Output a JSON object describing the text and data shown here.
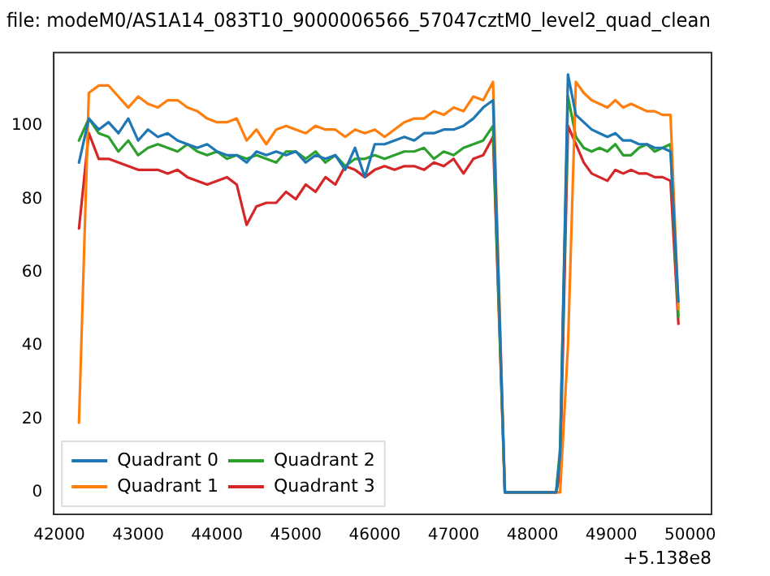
{
  "chart_data": {
    "type": "line",
    "title": "file: modeM0/AS1A14_083T10_9000006566_57047cztM0_level2_quad_clean",
    "annotations": [
      "+5.138e8"
    ],
    "x": [
      42250,
      42375,
      42500,
      42625,
      42750,
      42875,
      43000,
      43125,
      43250,
      43375,
      43500,
      43625,
      43750,
      43875,
      44000,
      44125,
      44250,
      44375,
      44500,
      44625,
      44750,
      44875,
      45000,
      45125,
      45250,
      45375,
      45500,
      45625,
      45750,
      45875,
      46000,
      46125,
      46250,
      46375,
      46500,
      46625,
      46750,
      46875,
      47000,
      47125,
      47250,
      47375,
      47500,
      47650,
      48300,
      48350,
      48450,
      48550,
      48650,
      48750,
      48850,
      48950,
      49050,
      49150,
      49250,
      49350,
      49450,
      49550,
      49650,
      49750,
      49850
    ],
    "series": [
      {
        "name": "Quadrant 0",
        "color": "#1f77b4",
        "values": [
          90,
          102,
          99,
          101,
          98,
          102,
          96,
          99,
          97,
          98,
          96,
          95,
          94,
          95,
          93,
          92,
          92,
          90,
          93,
          92,
          93,
          92,
          93,
          90,
          92,
          91,
          92,
          88,
          94,
          86,
          95,
          95,
          96,
          97,
          96,
          98,
          98,
          99,
          99,
          100,
          102,
          105,
          107,
          0,
          0,
          10,
          114,
          103,
          101,
          99,
          98,
          97,
          98,
          96,
          96,
          95,
          95,
          94,
          94,
          93,
          52
        ]
      },
      {
        "name": "Quadrant 1",
        "color": "#ff7f0e",
        "values": [
          19,
          109,
          111,
          111,
          108,
          105,
          108,
          106,
          105,
          107,
          107,
          105,
          104,
          102,
          101,
          101,
          102,
          96,
          99,
          95,
          99,
          100,
          99,
          98,
          100,
          99,
          99,
          97,
          99,
          98,
          99,
          97,
          99,
          101,
          102,
          102,
          104,
          103,
          105,
          104,
          108,
          107,
          112,
          0,
          0,
          0,
          40,
          112,
          109,
          107,
          106,
          105,
          107,
          105,
          106,
          105,
          104,
          104,
          103,
          103,
          50
        ]
      },
      {
        "name": "Quadrant 2",
        "color": "#2ca02c",
        "values": [
          96,
          102,
          98,
          97,
          93,
          96,
          92,
          94,
          95,
          94,
          93,
          95,
          93,
          92,
          93,
          91,
          92,
          91,
          92,
          91,
          90,
          93,
          93,
          91,
          93,
          90,
          92,
          89,
          91,
          91,
          92,
          91,
          92,
          93,
          93,
          94,
          91,
          93,
          92,
          94,
          95,
          96,
          100,
          0,
          0,
          12,
          108,
          97,
          94,
          93,
          94,
          93,
          95,
          92,
          92,
          94,
          95,
          93,
          94,
          95,
          48
        ]
      },
      {
        "name": "Quadrant 3",
        "color": "#d62728",
        "values": [
          72,
          98,
          91,
          91,
          90,
          89,
          88,
          88,
          88,
          87,
          88,
          86,
          85,
          84,
          85,
          86,
          84,
          73,
          78,
          79,
          79,
          82,
          80,
          84,
          82,
          86,
          84,
          89,
          88,
          86,
          88,
          89,
          88,
          89,
          89,
          88,
          90,
          89,
          91,
          87,
          91,
          92,
          97,
          0,
          0,
          5,
          100,
          95,
          90,
          87,
          86,
          85,
          88,
          87,
          88,
          87,
          87,
          86,
          86,
          85,
          46
        ]
      }
    ],
    "xlim": [
      41930,
      50270
    ],
    "xticks": [
      42000,
      43000,
      44000,
      45000,
      46000,
      47000,
      48000,
      49000,
      50000
    ],
    "ylim": [
      -6,
      120
    ],
    "yticks": [
      0,
      20,
      40,
      60,
      80,
      100
    ],
    "grid": false,
    "legend": "bottom left",
    "marker": "none",
    "line_style": "solid"
  }
}
